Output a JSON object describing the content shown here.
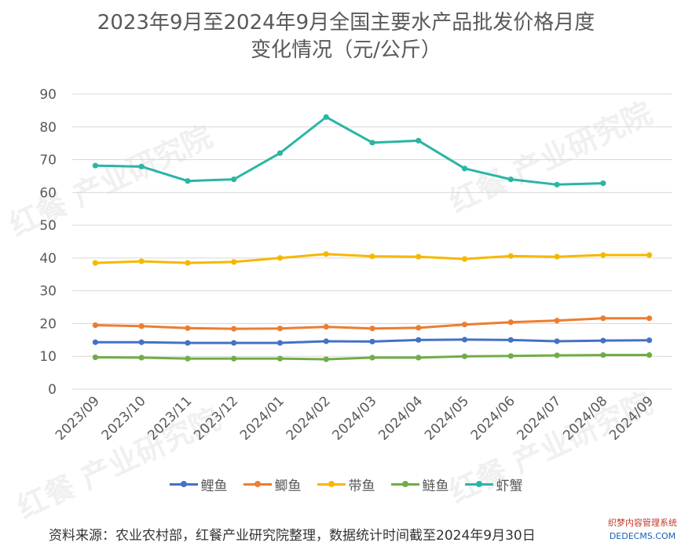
{
  "title_lines": [
    "2023年9月至2024年9月全国主要水产品批发价格月度",
    "变化情况（元/公斤）"
  ],
  "footnote": "资料来源：农业农村部，红餐产业研究院整理，数据统计时间截至2024年9月30日",
  "watermark_text": "红餐 产业研究院",
  "badge": {
    "line1": "织梦内容管理系统",
    "line2": "DEDECMS.COM"
  },
  "colors": {
    "鲤鱼": "#4472c4",
    "鲫鱼": "#ed7d31",
    "带鱼": "#f5b800",
    "鲢鱼": "#70ad47",
    "虾蟹": "#2ab5a5",
    "grid": "#d9d9d9",
    "text": "#595959"
  },
  "chart_data": {
    "type": "line",
    "title": "2023年9月至2024年9月全国主要水产品批发价格月度变化情况（元/公斤）",
    "xlabel": "",
    "ylabel": "",
    "ylim": [
      0,
      90
    ],
    "yticks": [
      0,
      10,
      20,
      30,
      40,
      50,
      60,
      70,
      80,
      90
    ],
    "grid": true,
    "legend_position": "bottom",
    "categories": [
      "2023/09",
      "2023/10",
      "2023/11",
      "2023/12",
      "2024/01",
      "2024/02",
      "2024/03",
      "2024/04",
      "2024/05",
      "2024/06",
      "2024/07",
      "2024/08",
      "2024/09"
    ],
    "series": [
      {
        "name": "鲤鱼",
        "values": [
          14.3,
          14.3,
          14.1,
          14.1,
          14.1,
          14.6,
          14.5,
          15.0,
          15.1,
          15.0,
          14.6,
          14.8,
          14.9
        ]
      },
      {
        "name": "鲫鱼",
        "values": [
          19.5,
          19.2,
          18.6,
          18.4,
          18.5,
          19.0,
          18.5,
          18.7,
          19.7,
          20.4,
          20.9,
          21.6,
          21.6
        ]
      },
      {
        "name": "带鱼",
        "values": [
          38.5,
          39.0,
          38.5,
          38.8,
          40.0,
          41.2,
          40.5,
          40.4,
          39.7,
          40.6,
          40.4,
          40.9,
          40.9
        ]
      },
      {
        "name": "鲢鱼",
        "values": [
          9.7,
          9.6,
          9.3,
          9.3,
          9.3,
          9.1,
          9.6,
          9.6,
          10.0,
          10.1,
          10.3,
          10.4,
          10.4
        ]
      },
      {
        "name": "虾蟹",
        "values": [
          68.2,
          67.9,
          63.5,
          64.0,
          72.0,
          83.0,
          75.2,
          75.8,
          67.3,
          64.0,
          62.4,
          62.8,
          null
        ]
      }
    ]
  }
}
